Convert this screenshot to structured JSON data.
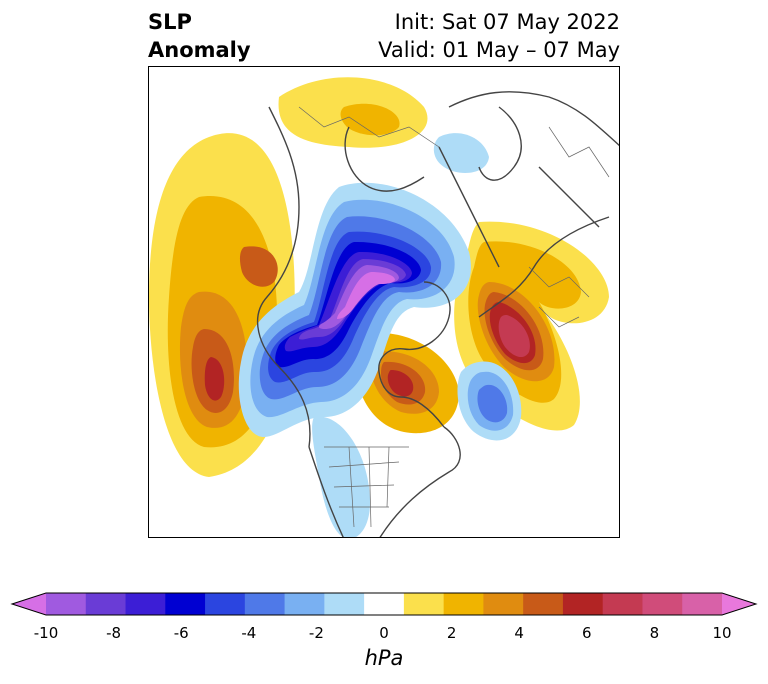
{
  "header": {
    "title_line1": "SLP",
    "title_line2": "Anomaly",
    "init_text": "Init: Sat 07 May 2022",
    "valid_text": "Valid: 01 May – 07 May"
  },
  "colorbar": {
    "unit_label": "hPa",
    "ticks": [
      "-10",
      "-8",
      "-6",
      "-4",
      "-2",
      "0",
      "2",
      "4",
      "6",
      "8",
      "10"
    ],
    "colors": [
      "#d66fe6",
      "#a05ae0",
      "#6a3cd6",
      "#3c1ed6",
      "#0000d2",
      "#2b45e0",
      "#4f79e8",
      "#79b0f2",
      "#aedcf7",
      "#ffffff",
      "#fbe04c",
      "#f0b400",
      "#e08c10",
      "#c85a18",
      "#b22424",
      "#c43a52",
      "#d04c7a",
      "#d861a8",
      "#e878dc"
    ],
    "extend": "both"
  },
  "map": {
    "projection": "north-polar-stereographic",
    "field": "sea level pressure anomaly"
  }
}
